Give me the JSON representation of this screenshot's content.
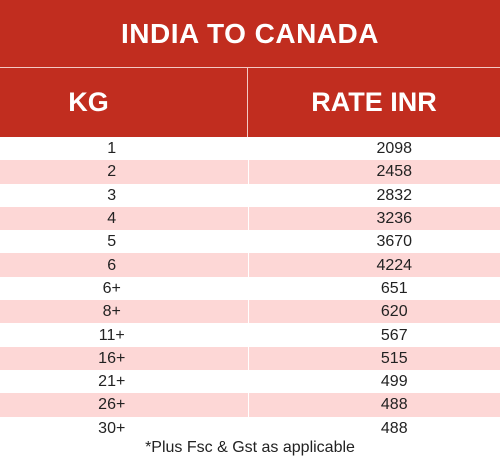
{
  "title": "INDIA TO CANADA",
  "headers": {
    "kg": "KG",
    "rate": "RATE INR"
  },
  "rows": [
    {
      "kg": "1",
      "rate": "2098"
    },
    {
      "kg": "2",
      "rate": "2458"
    },
    {
      "kg": "3",
      "rate": "2832"
    },
    {
      "kg": "4",
      "rate": "3236"
    },
    {
      "kg": "5",
      "rate": "3670"
    },
    {
      "kg": "6",
      "rate": "4224"
    },
    {
      "kg": "6+",
      "rate": "651"
    },
    {
      "kg": "8+",
      "rate": "620"
    },
    {
      "kg": "11+",
      "rate": "567"
    },
    {
      "kg": "16+",
      "rate": "515"
    },
    {
      "kg": "21+",
      "rate": "499"
    },
    {
      "kg": "26+",
      "rate": "488"
    },
    {
      "kg": "30+",
      "rate": "488"
    }
  ],
  "footnote": "*Plus Fsc & Gst as applicable",
  "colors": {
    "header_bg": "#c12d1f",
    "stripe": "#fdd7d6",
    "text": "#222222"
  }
}
